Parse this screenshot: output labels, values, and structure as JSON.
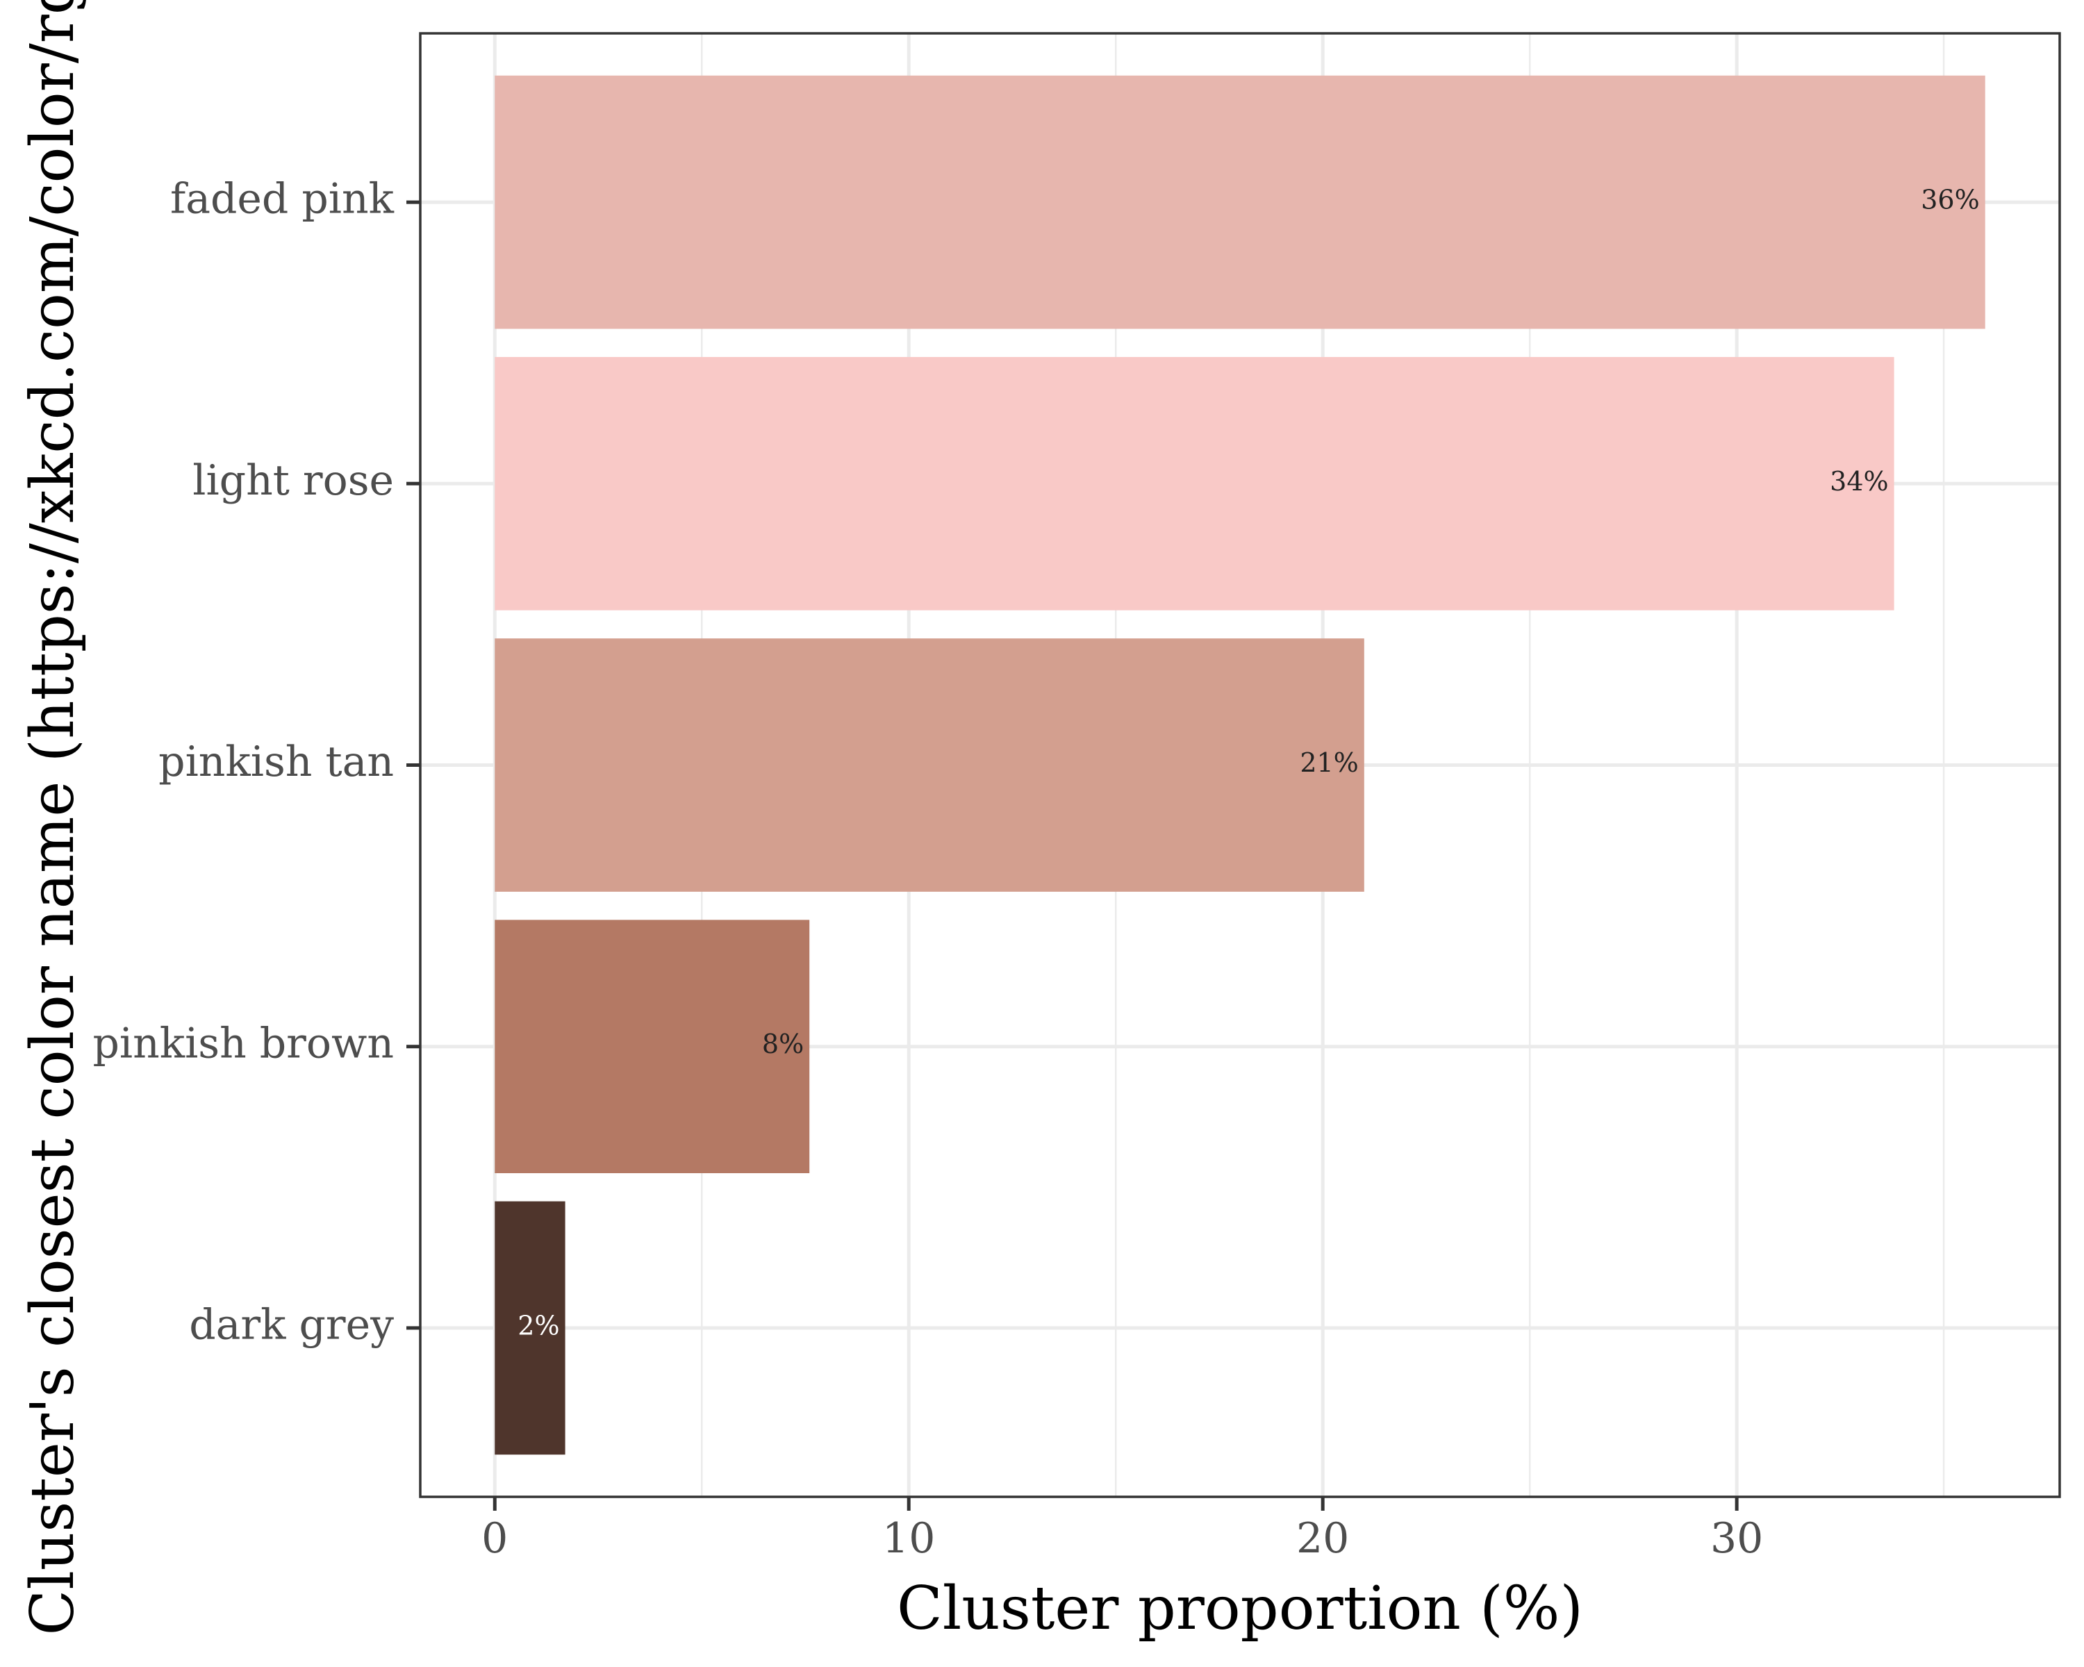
{
  "chart_data": {
    "type": "bar",
    "orientation": "horizontal",
    "xlabel": "Cluster proportion (%)",
    "ylabel": "Cluster's closest color name (https://xkcd.com/color/rgb/)",
    "xlim": [
      -1.8,
      37.8
    ],
    "x_ticks": [
      0,
      10,
      20,
      30
    ],
    "grid": true,
    "bars": [
      {
        "category": "faded pink",
        "value": 36.0,
        "label": "36%",
        "color": "#E7B6AE",
        "label_color": "#222222"
      },
      {
        "category": "light rose",
        "value": 33.8,
        "label": "34%",
        "color": "#F9C9C7",
        "label_color": "#222222"
      },
      {
        "category": "pinkish tan",
        "value": 21.0,
        "label": "21%",
        "color": "#D39F8F",
        "label_color": "#222222"
      },
      {
        "category": "pinkish brown",
        "value": 7.6,
        "label": "8%",
        "color": "#B47964",
        "label_color": "#222222"
      },
      {
        "category": "dark grey",
        "value": 1.7,
        "label": "2%",
        "color": "#4F352C",
        "label_color": "#FFFFFF"
      }
    ]
  }
}
